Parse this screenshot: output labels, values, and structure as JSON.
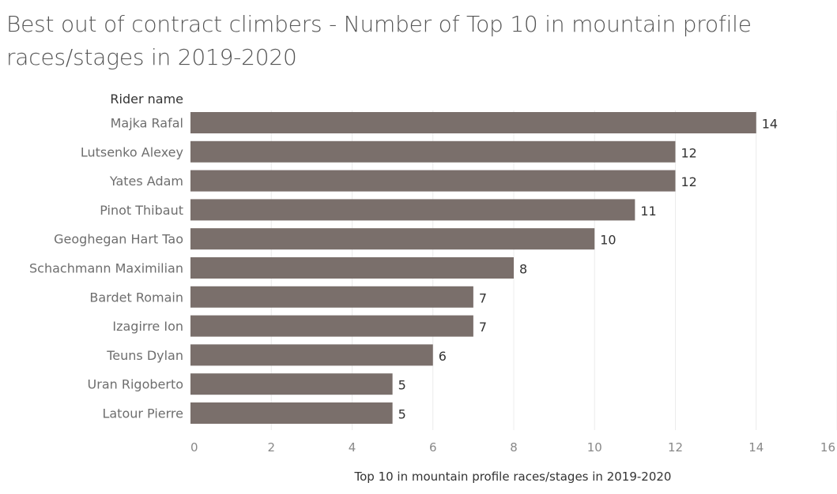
{
  "chart_data": {
    "type": "bar",
    "orientation": "horizontal",
    "title": "Best out of contract climbers - Number of Top 10 in mountain profile races/stages in 2019-2020",
    "row_header": "Rider name",
    "xlabel": "Top 10 in mountain profile races/stages in 2019-2020",
    "ylabel": "Rider name",
    "categories": [
      "Majka Rafal",
      "Lutsenko Alexey",
      "Yates Adam",
      "Pinot Thibaut",
      "Geoghegan Hart Tao",
      "Schachmann Maximilian",
      "Bardet Romain",
      "Izagirre Ion",
      "Teuns Dylan",
      "Uran Rigoberto",
      "Latour Pierre"
    ],
    "values": [
      14,
      12,
      12,
      11,
      10,
      8,
      7,
      7,
      6,
      5,
      5
    ],
    "xlim": [
      0,
      16
    ],
    "xticks": [
      0,
      2,
      4,
      6,
      8,
      10,
      12,
      14,
      16
    ],
    "grid": true,
    "bar_color": "#7a6f6b",
    "grid_color": "#ececec"
  }
}
